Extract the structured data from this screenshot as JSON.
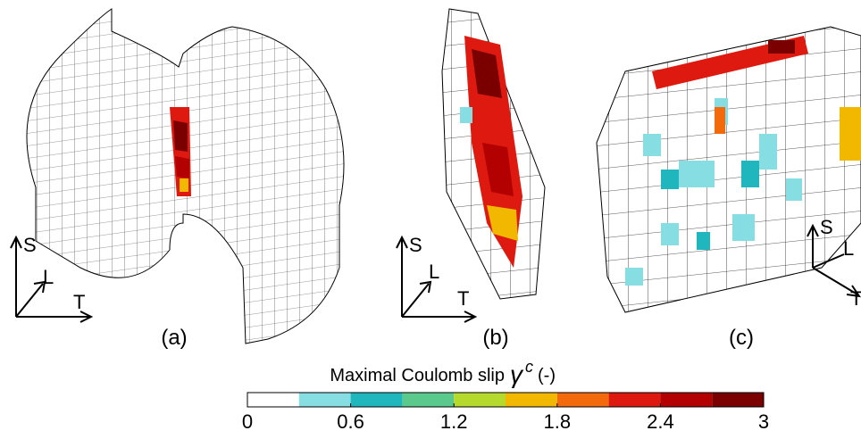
{
  "panels": [
    {
      "label": "(a)",
      "axes": [
        "S",
        "L",
        "T"
      ]
    },
    {
      "label": "(b)",
      "axes": [
        "S",
        "L",
        "T"
      ]
    },
    {
      "label": "(c)",
      "axes": [
        "S",
        "L",
        "T"
      ]
    }
  ],
  "colorbar": {
    "title": "Maximal Coulomb slip",
    "symbol": "γ",
    "superscript": "c",
    "unit": "(-)",
    "lim": [
      0,
      3
    ],
    "ticks": [
      0,
      0.6,
      1.2,
      1.8,
      2.4,
      3
    ],
    "colors": [
      "#ffffff",
      "#86dde2",
      "#1fb6be",
      "#5cc98c",
      "#b5d92c",
      "#f2b800",
      "#f26a0c",
      "#de1a10",
      "#b30000",
      "#7a0000"
    ]
  }
}
